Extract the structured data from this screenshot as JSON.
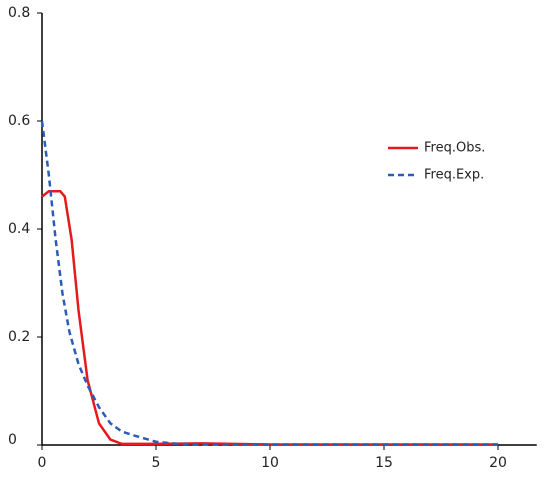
{
  "chart_data": {
    "type": "line",
    "series": [
      {
        "name": "Freq.Obs.",
        "color": "#e41a1c",
        "dash": false,
        "x": [
          0,
          0.3,
          0.8,
          1.0,
          1.3,
          1.6,
          2.0,
          2.5,
          3.0,
          3.5,
          5,
          7,
          10,
          15,
          20
        ],
        "values": [
          0.46,
          0.47,
          0.47,
          0.46,
          0.38,
          0.25,
          0.12,
          0.04,
          0.01,
          0.002,
          0.002,
          0.003,
          0.001,
          0.001,
          0.001
        ]
      },
      {
        "name": "Freq.Exp.",
        "color": "#2a5cb8",
        "dash": true,
        "x": [
          0,
          0.3,
          0.6,
          0.9,
          1.2,
          1.6,
          2.0,
          2.5,
          3.0,
          3.5,
          4,
          5,
          6,
          8,
          10,
          20
        ],
        "values": [
          0.6,
          0.5,
          0.38,
          0.28,
          0.21,
          0.15,
          0.11,
          0.07,
          0.04,
          0.025,
          0.018,
          0.006,
          0.002,
          0.001,
          0.001,
          0.001
        ]
      }
    ],
    "xlim": [
      0,
      21.7
    ],
    "xticks": [
      0,
      5,
      10,
      15,
      20
    ],
    "ylim": [
      0,
      0.8
    ],
    "yticks": [
      0,
      0.2,
      0.4,
      0.6,
      0.8
    ],
    "legend": "right"
  }
}
